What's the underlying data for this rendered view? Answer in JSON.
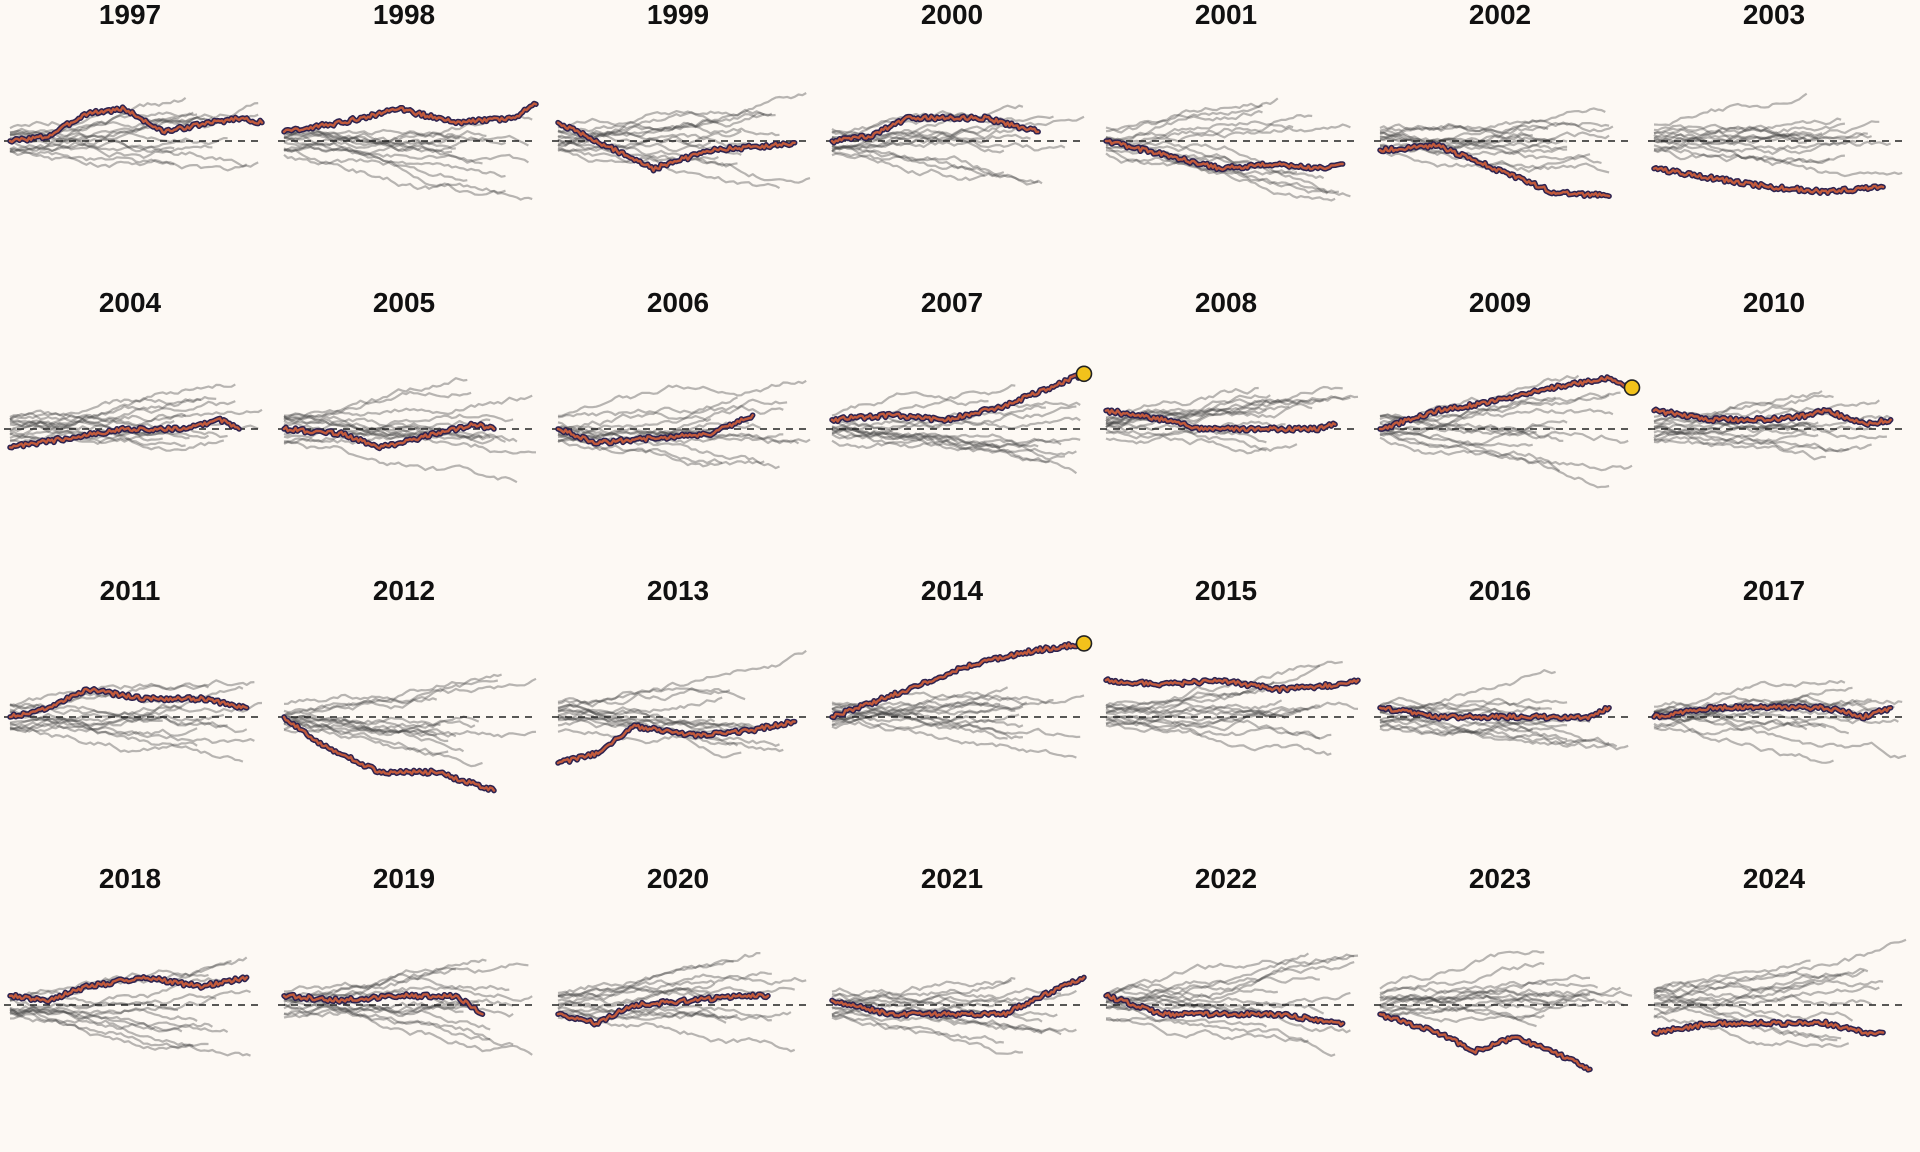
{
  "chart_data": {
    "type": "line",
    "layout": "small-multiples",
    "title": "",
    "xlabel": "",
    "ylabel": "",
    "reference_line": {
      "y": 0,
      "style": "dashed"
    },
    "colors": {
      "background": "#fdf9f4",
      "highlight": "#c25a3c",
      "highlight_outline": "#2d2350",
      "context_lines": "#444444",
      "end_marker": "#f2c21b"
    },
    "ylim": [
      -13,
      13
    ],
    "panels": [
      {
        "title": "1997",
        "highlight": [
          [
            0,
            0
          ],
          [
            10,
            0.5
          ],
          [
            20,
            3
          ],
          [
            30,
            3.5
          ],
          [
            40,
            1
          ],
          [
            50,
            1.8
          ],
          [
            60,
            2.5
          ],
          [
            66,
            2
          ]
        ],
        "end_marker": false
      },
      {
        "title": "1998",
        "highlight": [
          [
            0,
            1
          ],
          [
            15,
            2
          ],
          [
            30,
            3.5
          ],
          [
            45,
            2
          ],
          [
            60,
            2.5
          ],
          [
            66,
            4
          ]
        ],
        "end_marker": false
      },
      {
        "title": "1999",
        "highlight": [
          [
            0,
            2
          ],
          [
            15,
            -1
          ],
          [
            25,
            -3
          ],
          [
            40,
            -1
          ],
          [
            55,
            -0.5
          ],
          [
            62,
            -0.2
          ]
        ],
        "end_marker": false
      },
      {
        "title": "2000",
        "highlight": [
          [
            0,
            0
          ],
          [
            10,
            0.5
          ],
          [
            20,
            2.5
          ],
          [
            30,
            2.5
          ],
          [
            40,
            2.5
          ],
          [
            54,
            1
          ]
        ],
        "end_marker": false
      },
      {
        "title": "2001",
        "highlight": [
          [
            0,
            0
          ],
          [
            20,
            -2
          ],
          [
            30,
            -3
          ],
          [
            45,
            -2.5
          ],
          [
            55,
            -3
          ],
          [
            62,
            -2.5
          ]
        ],
        "end_marker": false
      },
      {
        "title": "2002",
        "highlight": [
          [
            0,
            -1
          ],
          [
            15,
            -0.5
          ],
          [
            30,
            -3
          ],
          [
            45,
            -5.5
          ],
          [
            60,
            -6
          ]
        ],
        "end_marker": false
      },
      {
        "title": "2003",
        "highlight": [
          [
            0,
            -3
          ],
          [
            15,
            -4
          ],
          [
            30,
            -5
          ],
          [
            45,
            -5.5
          ],
          [
            60,
            -5
          ]
        ],
        "end_marker": false
      },
      {
        "title": "2004",
        "highlight": [
          [
            0,
            -2
          ],
          [
            15,
            -1
          ],
          [
            30,
            0
          ],
          [
            45,
            0
          ],
          [
            55,
            1
          ],
          [
            60,
            0
          ]
        ],
        "end_marker": false
      },
      {
        "title": "2005",
        "highlight": [
          [
            0,
            0
          ],
          [
            15,
            -0.5
          ],
          [
            25,
            -2
          ],
          [
            40,
            -0.5
          ],
          [
            50,
            0.5
          ],
          [
            55,
            0
          ]
        ],
        "end_marker": false
      },
      {
        "title": "2006",
        "highlight": [
          [
            0,
            0
          ],
          [
            10,
            -1.5
          ],
          [
            25,
            -1
          ],
          [
            40,
            -0.5
          ],
          [
            51,
            1.5
          ]
        ],
        "end_marker": false
      },
      {
        "title": "2007",
        "highlight": [
          [
            0,
            1
          ],
          [
            15,
            1.5
          ],
          [
            30,
            1
          ],
          [
            45,
            2.5
          ],
          [
            60,
            5
          ],
          [
            66,
            6
          ]
        ],
        "end_marker": true
      },
      {
        "title": "2008",
        "highlight": [
          [
            0,
            2
          ],
          [
            15,
            1
          ],
          [
            25,
            0
          ],
          [
            45,
            0
          ],
          [
            55,
            0
          ],
          [
            60,
            0.5
          ]
        ],
        "end_marker": false
      },
      {
        "title": "2009",
        "highlight": [
          [
            0,
            0
          ],
          [
            15,
            2
          ],
          [
            30,
            3
          ],
          [
            45,
            4.5
          ],
          [
            60,
            5.5
          ],
          [
            66,
            4.5
          ]
        ],
        "end_marker": true
      },
      {
        "title": "2010",
        "highlight": [
          [
            0,
            2
          ],
          [
            15,
            1
          ],
          [
            30,
            1
          ],
          [
            40,
            1.5
          ],
          [
            45,
            2
          ],
          [
            55,
            0.5
          ],
          [
            62,
            1
          ]
        ],
        "end_marker": false
      },
      {
        "title": "2011",
        "highlight": [
          [
            0,
            0
          ],
          [
            10,
            1
          ],
          [
            20,
            3
          ],
          [
            35,
            2
          ],
          [
            50,
            2
          ],
          [
            62,
            1
          ]
        ],
        "end_marker": false
      },
      {
        "title": "2012",
        "highlight": [
          [
            0,
            0
          ],
          [
            10,
            -3
          ],
          [
            20,
            -5
          ],
          [
            25,
            -6
          ],
          [
            40,
            -6
          ],
          [
            55,
            -8
          ]
        ],
        "end_marker": false
      },
      {
        "title": "2013",
        "highlight": [
          [
            0,
            -5
          ],
          [
            10,
            -4
          ],
          [
            20,
            -1
          ],
          [
            35,
            -2
          ],
          [
            50,
            -1.5
          ],
          [
            62,
            -0.5
          ]
        ],
        "end_marker": false
      },
      {
        "title": "2014",
        "highlight": [
          [
            0,
            0
          ],
          [
            10,
            1.5
          ],
          [
            20,
            3
          ],
          [
            35,
            5.5
          ],
          [
            50,
            7
          ],
          [
            66,
            8
          ]
        ],
        "end_marker": true
      },
      {
        "title": "2015",
        "highlight": [
          [
            0,
            4
          ],
          [
            15,
            3.5
          ],
          [
            30,
            4
          ],
          [
            45,
            3
          ],
          [
            60,
            3.5
          ],
          [
            66,
            4
          ]
        ],
        "end_marker": false
      },
      {
        "title": "2016",
        "highlight": [
          [
            0,
            1
          ],
          [
            15,
            0
          ],
          [
            25,
            0
          ],
          [
            45,
            0
          ],
          [
            55,
            0
          ],
          [
            60,
            1
          ]
        ],
        "end_marker": false
      },
      {
        "title": "2017",
        "highlight": [
          [
            0,
            0
          ],
          [
            15,
            1
          ],
          [
            30,
            1
          ],
          [
            45,
            1
          ],
          [
            55,
            0
          ],
          [
            62,
            1
          ]
        ],
        "end_marker": false
      },
      {
        "title": "2018",
        "highlight": [
          [
            0,
            1
          ],
          [
            10,
            0.5
          ],
          [
            20,
            2
          ],
          [
            35,
            3
          ],
          [
            50,
            2
          ],
          [
            62,
            3
          ]
        ],
        "end_marker": false
      },
      {
        "title": "2019",
        "highlight": [
          [
            0,
            1
          ],
          [
            15,
            0.5
          ],
          [
            30,
            1
          ],
          [
            45,
            1
          ],
          [
            52,
            -1
          ]
        ],
        "end_marker": false
      },
      {
        "title": "2020",
        "highlight": [
          [
            0,
            -1
          ],
          [
            10,
            -2
          ],
          [
            20,
            0
          ],
          [
            35,
            0.5
          ],
          [
            50,
            1
          ],
          [
            55,
            1
          ]
        ],
        "end_marker": false
      },
      {
        "title": "2021",
        "highlight": [
          [
            0,
            0.5
          ],
          [
            15,
            -1
          ],
          [
            25,
            -1
          ],
          [
            45,
            -1
          ],
          [
            55,
            1
          ],
          [
            66,
            3
          ]
        ],
        "end_marker": false
      },
      {
        "title": "2022",
        "highlight": [
          [
            0,
            1
          ],
          [
            15,
            -1
          ],
          [
            30,
            -1
          ],
          [
            45,
            -1
          ],
          [
            62,
            -2
          ]
        ],
        "end_marker": false
      },
      {
        "title": "2023",
        "highlight": [
          [
            0,
            -1
          ],
          [
            15,
            -3
          ],
          [
            25,
            -5
          ],
          [
            35,
            -3.5
          ],
          [
            45,
            -5
          ],
          [
            55,
            -7
          ]
        ],
        "end_marker": false
      },
      {
        "title": "2024",
        "highlight": [
          [
            0,
            -3
          ],
          [
            15,
            -2
          ],
          [
            30,
            -2
          ],
          [
            45,
            -2
          ],
          [
            55,
            -3
          ],
          [
            60,
            -3
          ]
        ],
        "end_marker": false
      }
    ]
  }
}
